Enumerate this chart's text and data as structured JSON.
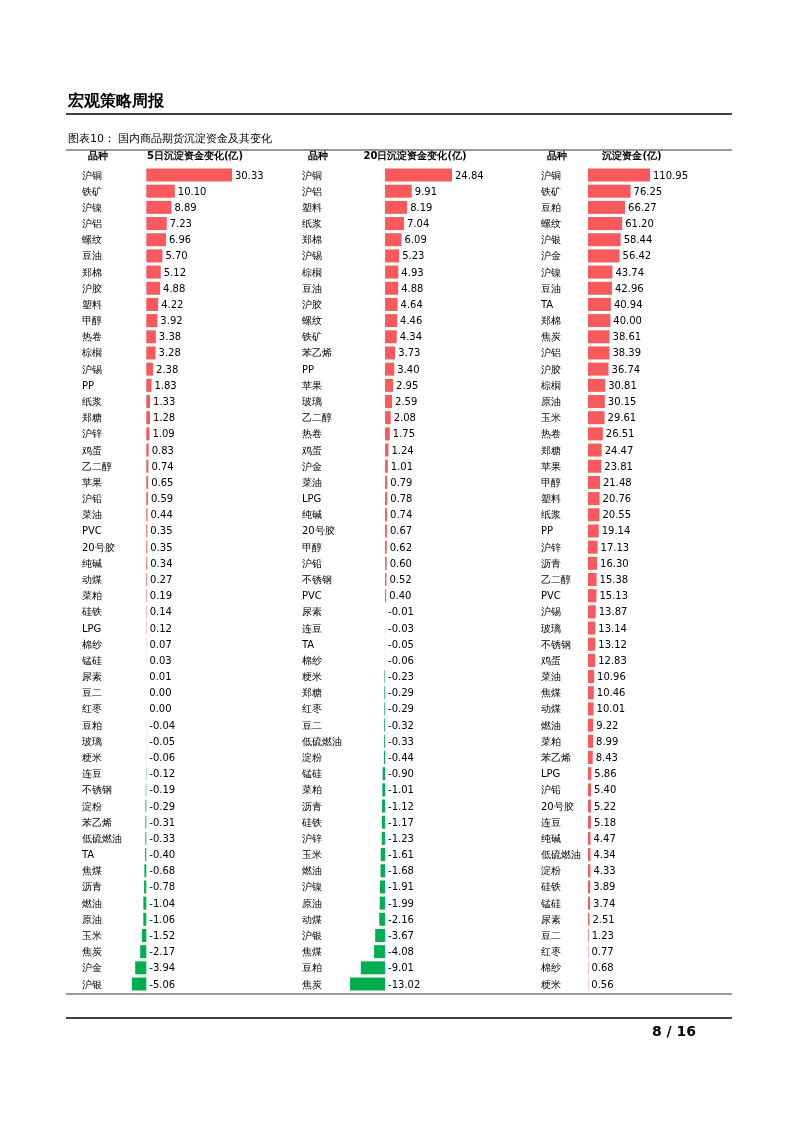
{
  "chart_data": [
    {
      "type": "bar",
      "orientation": "horizontal",
      "ylabel": "品种",
      "title": "5日沉淀资金变化(亿)",
      "annotations": [
        "宏观策略周报",
        "图表10： 国内商品期货沉淀资金及其变化"
      ],
      "categories": [
        "沪铜",
        "铁矿",
        "沪镍",
        "沪铝",
        "螺纹",
        "豆油",
        "郑棉",
        "沪胶",
        "塑料",
        "甲醇",
        "热卷",
        "棕榈",
        "沪锡",
        "PP",
        "纸浆",
        "郑糖",
        "沪锌",
        "鸡蛋",
        "乙二醇",
        "苹果",
        "沪铅",
        "菜油",
        "PVC",
        "20号胶",
        "纯碱",
        "动煤",
        "菜粕",
        "硅铁",
        "LPG",
        "棉纱",
        "锰硅",
        "尿素",
        "豆二",
        "红枣",
        "豆粕",
        "玻璃",
        "粳米",
        "连豆",
        "不锈钢",
        "淀粉",
        "苯乙烯",
        "低硫燃油",
        "TA",
        "焦煤",
        "沥青",
        "燃油",
        "原油",
        "玉米",
        "焦炭",
        "沪金",
        "沪银"
      ],
      "values": [
        30.33,
        10.1,
        8.89,
        7.23,
        6.96,
        5.7,
        5.12,
        4.88,
        4.22,
        3.92,
        3.38,
        3.28,
        2.38,
        1.83,
        1.33,
        1.28,
        1.09,
        0.83,
        0.74,
        0.65,
        0.59,
        0.44,
        0.35,
        0.35,
        0.34,
        0.27,
        0.19,
        0.14,
        0.12,
        0.07,
        0.03,
        0.01,
        0.0,
        0.0,
        -0.04,
        -0.05,
        -0.06,
        -0.12,
        -0.19,
        -0.29,
        -0.31,
        -0.33,
        -0.4,
        -0.68,
        -0.78,
        -1.04,
        -1.06,
        -1.52,
        -2.17,
        -3.94,
        -5.06
      ],
      "value_labels": [
        "30.33",
        "10.10",
        "8.89",
        "7.23",
        "6.96",
        "5.70",
        "5.12",
        "4.88",
        "4.22",
        "3.92",
        "3.38",
        "3.28",
        "2.38",
        "1.83",
        "1.33",
        "1.28",
        "1.09",
        "0.83",
        "0.74",
        "0.65",
        "0.59",
        "0.44",
        "0.35",
        "0.35",
        "0.34",
        "0.27",
        "0.19",
        "0.14",
        "0.12",
        "0.07",
        "0.03",
        "0.01",
        "0.00",
        "0.00",
        "-0.04",
        "-0.05",
        "-0.06",
        "-0.12",
        "-0.19",
        "-0.29",
        "-0.31",
        "-0.33",
        "-0.40",
        "-0.68",
        "-0.78",
        "-1.04",
        "-1.06",
        "-1.52",
        "-2.17",
        "-3.94",
        "-5.06"
      ],
      "colors": [
        "#f8595b",
        "#f8595b",
        "#f8595b",
        "#f8595b",
        "#f8595b",
        "#f8595b",
        "#f8595b",
        "#f8595b",
        "#f8595b",
        "#f8595b",
        "#f8595b",
        "#f8595b",
        "#f8595b",
        "#f8595b",
        "#f8595b",
        "#f8595b",
        "#f8595b",
        "#f8595b",
        "#f8595b",
        "#f8595b",
        "#f8595b",
        "#f8595b",
        "#f8595b",
        "#f8595b",
        "#f8595b",
        "#f8595b",
        "#f8595b",
        "#f8595b",
        "#f8595b",
        "#f8595b",
        "#f8595b",
        "#f8595b",
        "#f8595b",
        "#f8595b",
        "#00b050",
        "#00b050",
        "#00b050",
        "#00b050",
        "#00b050",
        "#00b050",
        "#00b050",
        "#00b050",
        "#00b050",
        "#00b050",
        "#00b050",
        "#00b050",
        "#00b050",
        "#00b050",
        "#00b050",
        "#00b050",
        "#00b050"
      ]
    },
    {
      "type": "bar",
      "orientation": "horizontal",
      "ylabel": "品种",
      "title": "20日沉淀资金变化(亿)",
      "categories": [
        "沪铜",
        "沪铝",
        "塑料",
        "纸浆",
        "郑棉",
        "沪锡",
        "棕榈",
        "豆油",
        "沪胶",
        "螺纹",
        "铁矿",
        "苯乙烯",
        "PP",
        "苹果",
        "玻璃",
        "乙二醇",
        "热卷",
        "鸡蛋",
        "沪金",
        "菜油",
        "LPG",
        "纯碱",
        "20号胶",
        "甲醇",
        "沪铅",
        "不锈钢",
        "PVC",
        "尿素",
        "连豆",
        "TA",
        "棉纱",
        "粳米",
        "郑糖",
        "红枣",
        "豆二",
        "低硫燃油",
        "淀粉",
        "锰硅",
        "菜粕",
        "沥青",
        "硅铁",
        "沪锌",
        "玉米",
        "燃油",
        "沪镍",
        "原油",
        "动煤",
        "沪银",
        "焦煤",
        "豆粕",
        "焦炭"
      ],
      "values": [
        24.84,
        9.91,
        8.19,
        7.04,
        6.09,
        5.23,
        4.93,
        4.88,
        4.64,
        4.46,
        4.34,
        3.73,
        3.4,
        2.95,
        2.59,
        2.08,
        1.75,
        1.24,
        1.01,
        0.79,
        0.78,
        0.74,
        0.67,
        0.62,
        0.6,
        0.52,
        0.4,
        -0.01,
        -0.03,
        -0.05,
        -0.06,
        -0.23,
        -0.29,
        -0.29,
        -0.32,
        -0.33,
        -0.44,
        -0.9,
        -1.01,
        -1.12,
        -1.17,
        -1.23,
        -1.61,
        -1.68,
        -1.91,
        -1.99,
        -2.16,
        -3.67,
        -4.08,
        -9.01,
        -13.02
      ],
      "value_labels": [
        "24.84",
        "9.91",
        "8.19",
        "7.04",
        "6.09",
        "5.23",
        "4.93",
        "4.88",
        "4.64",
        "4.46",
        "4.34",
        "3.73",
        "3.40",
        "2.95",
        "2.59",
        "2.08",
        "1.75",
        "1.24",
        "1.01",
        "0.79",
        "0.78",
        "0.74",
        "0.67",
        "0.62",
        "0.60",
        "0.52",
        "0.40",
        "-0.01",
        "-0.03",
        "-0.05",
        "-0.06",
        "-0.23",
        "-0.29",
        "-0.29",
        "-0.32",
        "-0.33",
        "-0.44",
        "-0.90",
        "-1.01",
        "-1.12",
        "-1.17",
        "-1.23",
        "-1.61",
        "-1.68",
        "-1.91",
        "-1.99",
        "-2.16",
        "-3.67",
        "-4.08",
        "-9.01",
        "-13.02"
      ],
      "colors": [
        "#f8595b",
        "#f8595b",
        "#f8595b",
        "#f8595b",
        "#f8595b",
        "#f8595b",
        "#f8595b",
        "#f8595b",
        "#f8595b",
        "#f8595b",
        "#f8595b",
        "#f8595b",
        "#f8595b",
        "#f8595b",
        "#f8595b",
        "#f8595b",
        "#f8595b",
        "#f8595b",
        "#f8595b",
        "#f8595b",
        "#f8595b",
        "#f8595b",
        "#f8595b",
        "#f8595b",
        "#f8595b",
        "#f8595b",
        "#f8595b",
        "#00b050",
        "#00b050",
        "#00b050",
        "#00b050",
        "#00b050",
        "#00b050",
        "#00b050",
        "#00b050",
        "#00b050",
        "#00b050",
        "#00b050",
        "#00b050",
        "#00b050",
        "#00b050",
        "#00b050",
        "#00b050",
        "#00b050",
        "#00b050",
        "#00b050",
        "#00b050",
        "#00b050",
        "#00b050",
        "#00b050",
        "#00b050"
      ]
    },
    {
      "type": "bar",
      "orientation": "horizontal",
      "ylabel": "品种",
      "title": "沉淀资金(亿)",
      "color": "#f8595b",
      "annotations": [
        "8 / 16"
      ],
      "categories": [
        "沪铜",
        "铁矿",
        "豆粕",
        "螺纹",
        "沪银",
        "沪金",
        "沪镍",
        "豆油",
        "TA",
        "郑棉",
        "焦炭",
        "沪铝",
        "沪胶",
        "棕榈",
        "原油",
        "玉米",
        "热卷",
        "郑糖",
        "苹果",
        "甲醇",
        "塑料",
        "纸浆",
        "PP",
        "沪锌",
        "沥青",
        "乙二醇",
        "PVC",
        "沪锡",
        "玻璃",
        "不锈钢",
        "鸡蛋",
        "菜油",
        "焦煤",
        "动煤",
        "燃油",
        "菜粕",
        "苯乙烯",
        "LPG",
        "沪铅",
        "20号胶",
        "连豆",
        "纯碱",
        "低硫燃油",
        "淀粉",
        "硅铁",
        "锰硅",
        "尿素",
        "豆二",
        "红枣",
        "棉纱",
        "粳米"
      ],
      "values": [
        110.95,
        76.25,
        66.27,
        61.2,
        58.44,
        56.42,
        43.74,
        42.96,
        40.94,
        40.0,
        38.61,
        38.39,
        36.74,
        30.81,
        30.15,
        29.61,
        26.51,
        24.47,
        23.81,
        21.48,
        20.76,
        20.55,
        19.14,
        17.13,
        16.3,
        15.38,
        15.13,
        13.87,
        13.14,
        13.12,
        12.83,
        10.96,
        10.46,
        10.01,
        9.22,
        8.99,
        8.43,
        5.86,
        5.4,
        5.22,
        5.18,
        4.47,
        4.34,
        4.33,
        3.89,
        3.74,
        2.51,
        1.23,
        0.77,
        0.68,
        0.56
      ],
      "value_labels": [
        "110.95",
        "76.25",
        "66.27",
        "61.20",
        "58.44",
        "56.42",
        "43.74",
        "42.96",
        "40.94",
        "40.00",
        "38.61",
        "38.39",
        "36.74",
        "30.81",
        "30.15",
        "29.61",
        "26.51",
        "24.47",
        "23.81",
        "21.48",
        "20.76",
        "20.55",
        "19.14",
        "17.13",
        "16.30",
        "15.38",
        "15.13",
        "13.87",
        "13.14",
        "13.12",
        "12.83",
        "10.96",
        "10.46",
        "10.01",
        "9.22",
        "8.99",
        "8.43",
        "5.86",
        "5.40",
        "5.22",
        "5.18",
        "4.47",
        "4.34",
        "4.33",
        "3.89",
        "3.74",
        "2.51",
        "1.23",
        "0.77",
        "0.68",
        "0.56"
      ]
    }
  ]
}
